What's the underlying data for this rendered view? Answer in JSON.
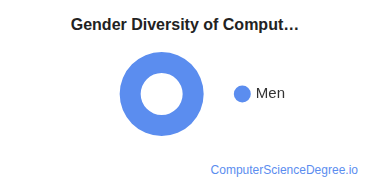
{
  "chart_data": {
    "type": "doughnut",
    "title": "Gender Diversity of Comput…",
    "categories": [
      "Men"
    ],
    "values": [
      100
    ],
    "colors": [
      "#5b8def"
    ],
    "legend": "right",
    "annotations": [
      "ComputerScienceDegree.io"
    ]
  }
}
